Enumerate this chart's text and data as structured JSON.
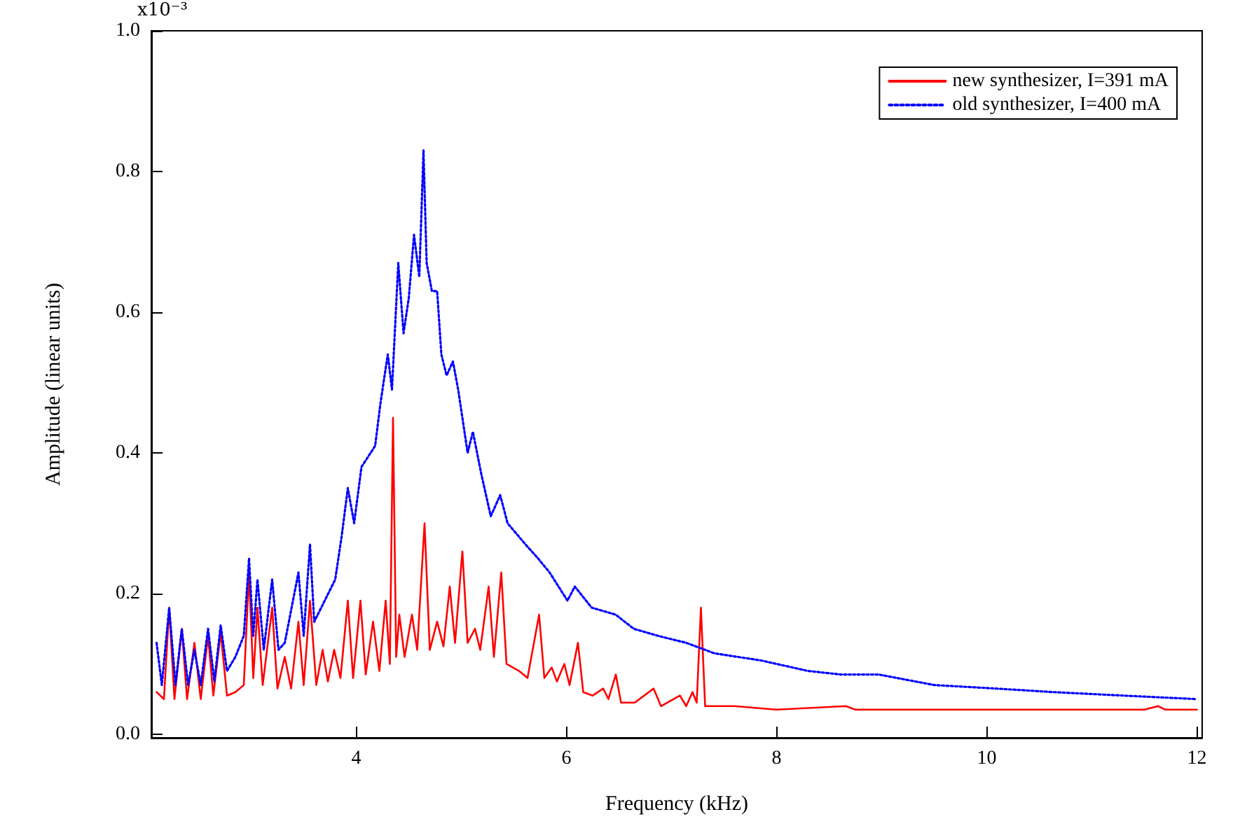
{
  "chart_data": {
    "type": "line",
    "xlabel": "Frequency (kHz)",
    "ylabel": "Amplitude (linear units)",
    "xlim": [
      2.05,
      12.05
    ],
    "xticks": [
      4,
      6,
      8,
      10,
      12
    ],
    "ylim": [
      -0.005,
      1.0
    ],
    "yticks": [
      {
        "value": 0,
        "label": "0.0"
      },
      0.2,
      0.4,
      0.6,
      0.8,
      {
        "value": 1.0,
        "label": "1.0"
      }
    ],
    "annotations": [
      "x10⁻³"
    ],
    "grid": false,
    "legend": "top right",
    "marker": "none",
    "series": [
      {
        "name": "new synthesizer, I=391 mA",
        "color": "#ff0000",
        "line_style": "solid",
        "x": [
          2.1,
          2.17,
          2.22,
          2.27,
          2.34,
          2.39,
          2.46,
          2.52,
          2.59,
          2.64,
          2.71,
          2.77,
          2.85,
          2.93,
          2.98,
          3.02,
          3.06,
          3.11,
          3.2,
          3.25,
          3.32,
          3.38,
          3.45,
          3.5,
          3.56,
          3.62,
          3.68,
          3.73,
          3.79,
          3.85,
          3.92,
          3.97,
          4.04,
          4.09,
          4.16,
          4.22,
          4.28,
          4.32,
          4.35,
          4.38,
          4.41,
          4.46,
          4.53,
          4.58,
          4.65,
          4.7,
          4.77,
          4.83,
          4.89,
          4.94,
          5.01,
          5.06,
          5.13,
          5.18,
          5.26,
          5.31,
          5.38,
          5.43,
          5.55,
          5.63,
          5.74,
          5.79,
          5.86,
          5.91,
          5.98,
          6.03,
          6.11,
          6.16,
          6.25,
          6.35,
          6.4,
          6.47,
          6.52,
          6.65,
          6.83,
          6.9,
          7.08,
          7.14,
          7.2,
          7.24,
          7.28,
          7.32,
          7.6,
          8.0,
          8.66,
          8.75,
          9.5,
          10.5,
          11.5,
          11.63,
          11.7,
          12.0
        ],
        "values": [
          0.06,
          0.05,
          0.18,
          0.05,
          0.15,
          0.05,
          0.13,
          0.05,
          0.14,
          0.055,
          0.145,
          0.055,
          0.06,
          0.07,
          0.23,
          0.08,
          0.18,
          0.07,
          0.18,
          0.065,
          0.11,
          0.065,
          0.16,
          0.07,
          0.19,
          0.07,
          0.12,
          0.075,
          0.12,
          0.08,
          0.19,
          0.08,
          0.19,
          0.085,
          0.16,
          0.09,
          0.19,
          0.1,
          0.45,
          0.11,
          0.17,
          0.11,
          0.17,
          0.12,
          0.3,
          0.12,
          0.16,
          0.125,
          0.21,
          0.13,
          0.26,
          0.13,
          0.15,
          0.12,
          0.21,
          0.11,
          0.23,
          0.1,
          0.09,
          0.08,
          0.17,
          0.08,
          0.095,
          0.075,
          0.1,
          0.07,
          0.13,
          0.06,
          0.055,
          0.065,
          0.05,
          0.085,
          0.045,
          0.045,
          0.065,
          0.04,
          0.055,
          0.04,
          0.06,
          0.045,
          0.18,
          0.04,
          0.04,
          0.035,
          0.04,
          0.035,
          0.035,
          0.035,
          0.035,
          0.04,
          0.035,
          0.035
        ]
      },
      {
        "name": "old synthesizer, I=400 mA",
        "color": "#0000ff",
        "line_style": "dotted",
        "x": [
          2.1,
          2.15,
          2.22,
          2.28,
          2.34,
          2.4,
          2.46,
          2.52,
          2.59,
          2.65,
          2.71,
          2.77,
          2.85,
          2.93,
          2.98,
          3.02,
          3.06,
          3.12,
          3.2,
          3.26,
          3.32,
          3.45,
          3.5,
          3.56,
          3.6,
          3.7,
          3.8,
          3.86,
          3.92,
          3.98,
          4.05,
          4.18,
          4.23,
          4.3,
          4.34,
          4.4,
          4.45,
          4.5,
          4.55,
          4.6,
          4.64,
          4.67,
          4.72,
          4.77,
          4.81,
          4.86,
          4.92,
          4.97,
          5.01,
          5.06,
          5.11,
          5.19,
          5.28,
          5.37,
          5.44,
          5.61,
          5.73,
          5.84,
          6.01,
          6.08,
          6.24,
          6.47,
          6.64,
          6.87,
          7.14,
          7.41,
          7.85,
          8.3,
          8.61,
          8.97,
          9.5,
          10.09,
          10.63,
          11.3,
          12.0
        ],
        "values": [
          0.13,
          0.07,
          0.18,
          0.07,
          0.15,
          0.07,
          0.12,
          0.07,
          0.15,
          0.075,
          0.155,
          0.09,
          0.11,
          0.14,
          0.25,
          0.14,
          0.22,
          0.12,
          0.22,
          0.12,
          0.13,
          0.23,
          0.14,
          0.27,
          0.16,
          0.19,
          0.22,
          0.28,
          0.35,
          0.3,
          0.38,
          0.41,
          0.47,
          0.54,
          0.49,
          0.67,
          0.57,
          0.62,
          0.71,
          0.65,
          0.83,
          0.67,
          0.63,
          0.63,
          0.54,
          0.51,
          0.53,
          0.49,
          0.45,
          0.4,
          0.43,
          0.37,
          0.31,
          0.34,
          0.3,
          0.27,
          0.25,
          0.23,
          0.19,
          0.21,
          0.18,
          0.17,
          0.15,
          0.14,
          0.13,
          0.115,
          0.105,
          0.09,
          0.085,
          0.085,
          0.07,
          0.065,
          0.06,
          0.055,
          0.05
        ]
      }
    ]
  }
}
